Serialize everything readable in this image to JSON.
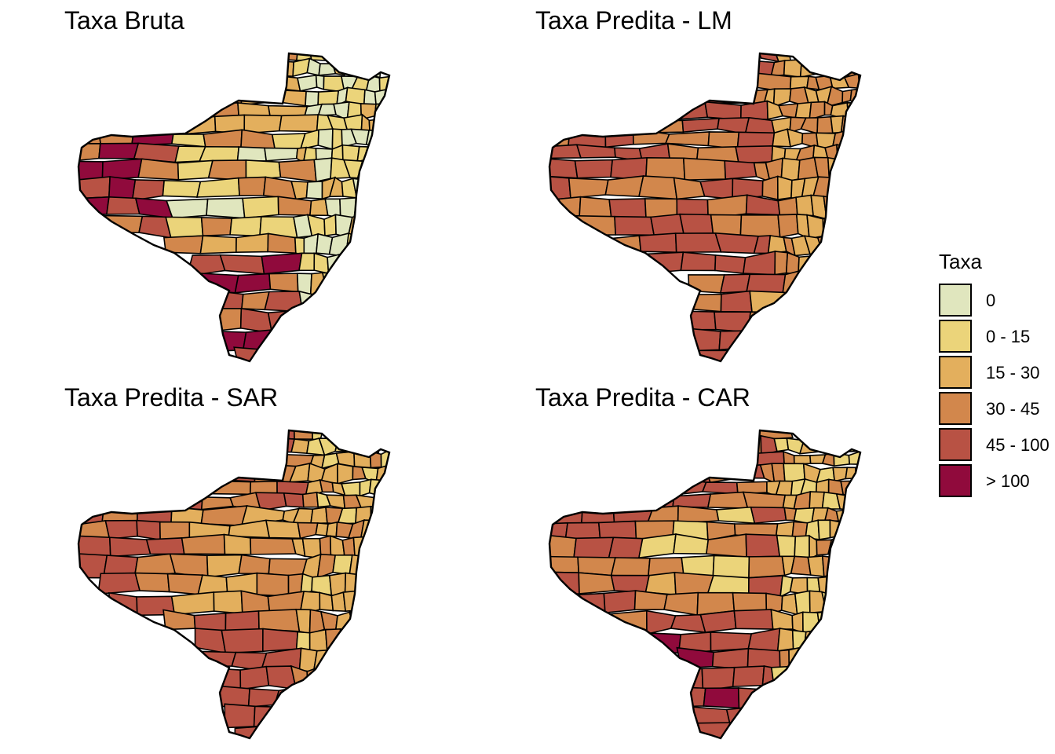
{
  "figure": {
    "panels": [
      {
        "title": "Taxa Bruta",
        "scheme": "bruta"
      },
      {
        "title": "Taxa Predita - LM",
        "scheme": "lm"
      },
      {
        "title": "Taxa Predita - SAR",
        "scheme": "sar"
      },
      {
        "title": "Taxa Predita - CAR",
        "scheme": "car"
      }
    ]
  },
  "legend": {
    "title": "Taxa",
    "classes": [
      {
        "label": "0",
        "color": "#e0e6be"
      },
      {
        "label": "0 - 15",
        "color": "#ebd47a"
      },
      {
        "label": "15 - 30",
        "color": "#e3af5d"
      },
      {
        "label": "30 - 45",
        "color": "#d2874c"
      },
      {
        "label": "45 - 100",
        "color": "#b85244"
      },
      {
        "label": "> 100",
        "color": "#900a3c"
      }
    ]
  }
}
